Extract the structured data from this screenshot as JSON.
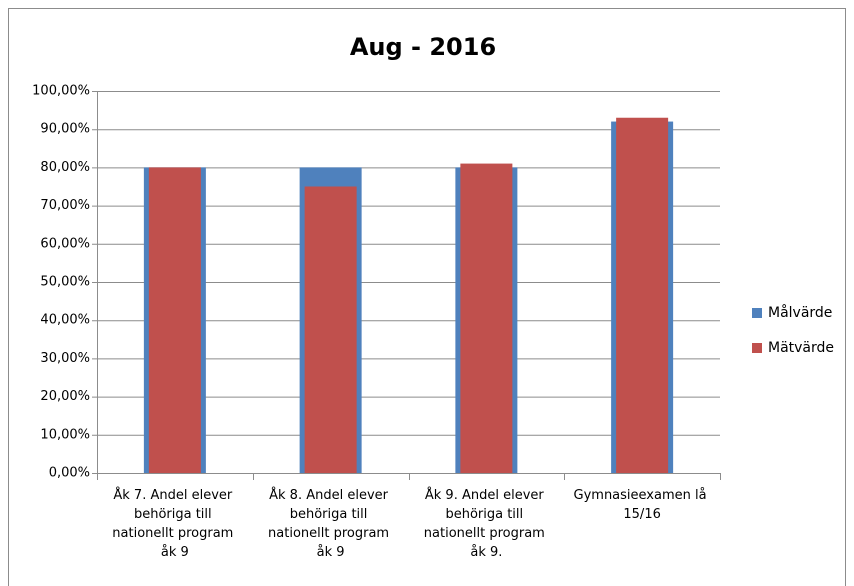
{
  "chart_data": {
    "type": "bar",
    "title": "Aug - 2016",
    "categories": [
      "Åk 7. Andel elever behöriga till nationellt program åk 9",
      "Åk 8. Andel elever behöriga till nationellt program åk 9",
      "Åk 9. Andel elever behöriga till nationellt program åk 9.",
      "Gymnasieexamen lå 15/16"
    ],
    "series": [
      {
        "name": "Målvärde",
        "color": "#4f81bd",
        "values": [
          80,
          80,
          80,
          92
        ]
      },
      {
        "name": "Mätvärde",
        "color": "#c0504d",
        "values": [
          80,
          75,
          81,
          93
        ]
      }
    ],
    "ylim": [
      0,
      100
    ],
    "yticks": [
      {
        "value": 0,
        "label": "0,00%"
      },
      {
        "value": 10,
        "label": "10,00%"
      },
      {
        "value": 20,
        "label": "20,00%"
      },
      {
        "value": 30,
        "label": "30,00%"
      },
      {
        "value": 40,
        "label": "40,00%"
      },
      {
        "value": 50,
        "label": "50,00%"
      },
      {
        "value": 60,
        "label": "60,00%"
      },
      {
        "value": 70,
        "label": "70,00%"
      },
      {
        "value": 80,
        "label": "80,00%"
      },
      {
        "value": 90,
        "label": "90,00%"
      },
      {
        "value": 100,
        "label": "100,00%"
      }
    ],
    "grid": true,
    "legend": "right"
  }
}
